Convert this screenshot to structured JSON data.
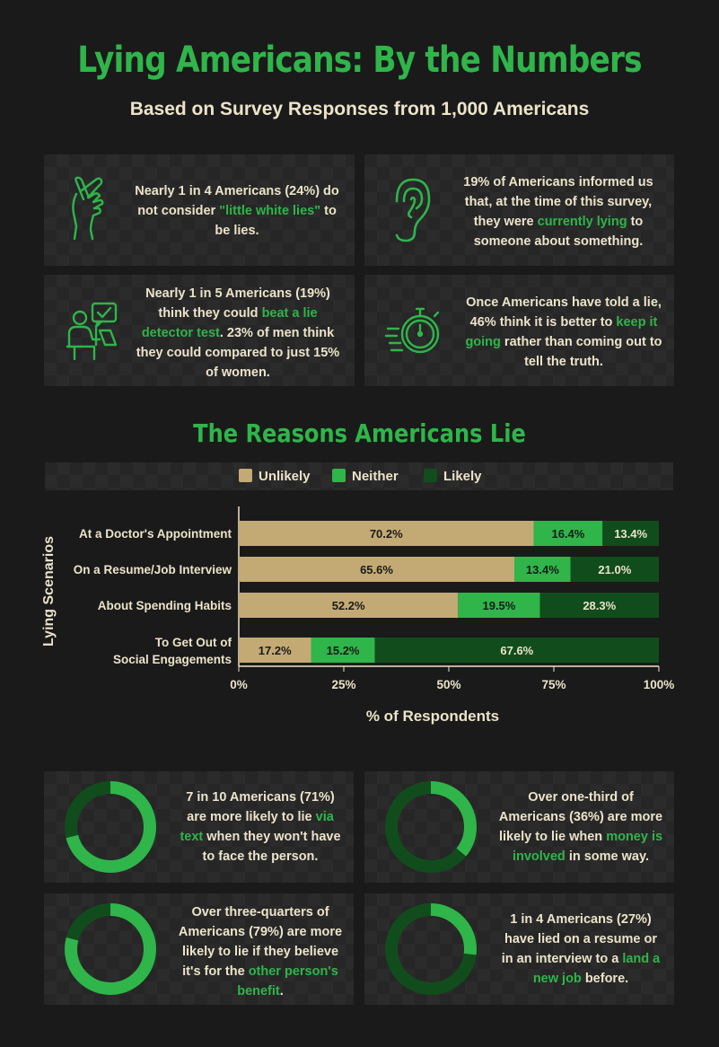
{
  "header": {
    "title": "Lying Americans: By the Numbers",
    "subtitle": "Based on Survey Responses from 1,000 Americans"
  },
  "facts": [
    {
      "icon": "crossed-fingers-icon",
      "pre": "Nearly 1 in 4 Americans (24%) do not consider ",
      "hl": "\"little white lies\"",
      "post": " to be lies."
    },
    {
      "icon": "ear-icon",
      "pre": "19% of Americans informed us that, at the time of this survey, they were ",
      "hl": "currently lying",
      "post": " to someone about something."
    },
    {
      "icon": "lie-detector-person-icon",
      "pre": "Nearly 1 in 5 Americans (19%) think they could ",
      "hl": "beat a lie detector test",
      "post": ". 23% of men think they could compared to just 15% of women."
    },
    {
      "icon": "stopwatch-icon",
      "pre": "Once Americans have told a lie, 46% think it is better to ",
      "hl": "keep it going",
      "post": " rather than coming out to tell the truth."
    }
  ],
  "section_title": "The Reasons Americans Lie",
  "colors": {
    "unlikely": "#c3aa74",
    "neither": "#2fb54a",
    "likely": "#114d1c",
    "accent": "#2fb54a"
  },
  "chart_data": {
    "type": "bar",
    "orientation": "horizontal",
    "stacked": true,
    "title": "The Reasons Americans Lie",
    "xlabel": "% of Respondents",
    "ylabel": "Lying Scenarios",
    "xlim": [
      0,
      100
    ],
    "xticks": [
      "0%",
      "25%",
      "50%",
      "75%",
      "100%"
    ],
    "legend_position": "top",
    "categories": [
      "At a Doctor's Appointment",
      "On a Resume/Job Interview",
      "About Spending Habits",
      "To Get Out of Social Engagements"
    ],
    "series": [
      {
        "name": "Unlikely",
        "values": [
          70.2,
          65.6,
          52.2,
          17.2
        ]
      },
      {
        "name": "Neither",
        "values": [
          16.4,
          13.4,
          19.5,
          15.2
        ]
      },
      {
        "name": "Likely",
        "values": [
          13.4,
          21.0,
          28.3,
          67.6
        ]
      }
    ]
  },
  "donuts": [
    {
      "value": 71,
      "pre": "7 in 10 Americans (71%) are more likely to lie ",
      "hl": "via text",
      "post": " when they won't have to face the person."
    },
    {
      "value": 36,
      "pre": "Over one-third of Americans (36%) are more likely to lie when ",
      "hl": "money is involved",
      "post": " in some way."
    },
    {
      "value": 79,
      "pre": "Over three-quarters of Americans (79%) are more likely to lie if they believe it's for the ",
      "hl": "other person's benefit",
      "post": "."
    },
    {
      "value": 27,
      "pre": "1 in 4 Americans (27%) have lied on a resume or in an interview to a ",
      "hl": "land a new job",
      "post": " before."
    }
  ]
}
